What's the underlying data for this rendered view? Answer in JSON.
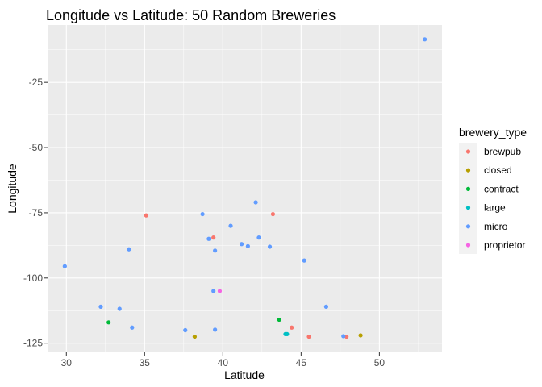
{
  "chart_data": {
    "type": "scatter",
    "title": "Longitude vs Latitude: 50 Random Breweries",
    "xlabel": "Latitude",
    "ylabel": "Longitude",
    "xlim": [
      28.8,
      54.0
    ],
    "ylim": [
      -128.5,
      -3.0
    ],
    "x_ticks": [
      30,
      35,
      40,
      45,
      50
    ],
    "y_ticks": [
      -25,
      -50,
      -75,
      -100,
      -125
    ],
    "grid": true,
    "panel_color": "#ebebeb",
    "legend": {
      "title": "brewery_type",
      "placement": "right",
      "entries": [
        {
          "name": "brewpub",
          "color": "#F8766D"
        },
        {
          "name": "closed",
          "color": "#B79F00"
        },
        {
          "name": "contract",
          "color": "#00BA38"
        },
        {
          "name": "large",
          "color": "#00BFC4"
        },
        {
          "name": "micro",
          "color": "#619CFF"
        },
        {
          "name": "proprietor",
          "color": "#F564E3"
        }
      ]
    },
    "series": [
      {
        "name": "brewpub",
        "color": "#F8766D",
        "points": [
          {
            "x": 35.1,
            "y": -76.0
          },
          {
            "x": 39.4,
            "y": -84.5
          },
          {
            "x": 43.2,
            "y": -75.5
          },
          {
            "x": 44.4,
            "y": -119.0
          },
          {
            "x": 45.5,
            "y": -122.5
          },
          {
            "x": 47.9,
            "y": -122.5
          }
        ]
      },
      {
        "name": "closed",
        "color": "#B79F00",
        "points": [
          {
            "x": 38.2,
            "y": -122.5
          },
          {
            "x": 48.8,
            "y": -122.0
          }
        ]
      },
      {
        "name": "contract",
        "color": "#00BA38",
        "points": [
          {
            "x": 32.7,
            "y": -117.0
          },
          {
            "x": 43.6,
            "y": -116.0
          }
        ]
      },
      {
        "name": "large",
        "color": "#00BFC4",
        "points": [
          {
            "x": 44.0,
            "y": -121.5
          },
          {
            "x": 44.1,
            "y": -121.5
          }
        ]
      },
      {
        "name": "micro",
        "color": "#619CFF",
        "points": [
          {
            "x": 29.9,
            "y": -95.5
          },
          {
            "x": 32.2,
            "y": -111.0
          },
          {
            "x": 33.4,
            "y": -111.8
          },
          {
            "x": 34.0,
            "y": -89.0
          },
          {
            "x": 34.2,
            "y": -119.0
          },
          {
            "x": 37.6,
            "y": -120.0
          },
          {
            "x": 38.7,
            "y": -75.5
          },
          {
            "x": 39.1,
            "y": -85.0
          },
          {
            "x": 39.4,
            "y": -105.0
          },
          {
            "x": 39.5,
            "y": -89.5
          },
          {
            "x": 39.5,
            "y": -119.8
          },
          {
            "x": 40.5,
            "y": -80.0
          },
          {
            "x": 41.2,
            "y": -87.0
          },
          {
            "x": 41.6,
            "y": -87.8
          },
          {
            "x": 42.1,
            "y": -71.0
          },
          {
            "x": 42.3,
            "y": -84.5
          },
          {
            "x": 43.0,
            "y": -88.0
          },
          {
            "x": 45.2,
            "y": -93.3
          },
          {
            "x": 46.6,
            "y": -111.0
          },
          {
            "x": 47.7,
            "y": -122.3
          },
          {
            "x": 52.9,
            "y": -8.5
          }
        ]
      },
      {
        "name": "proprietor",
        "color": "#F564E3",
        "points": [
          {
            "x": 39.8,
            "y": -105.0
          }
        ]
      }
    ]
  }
}
